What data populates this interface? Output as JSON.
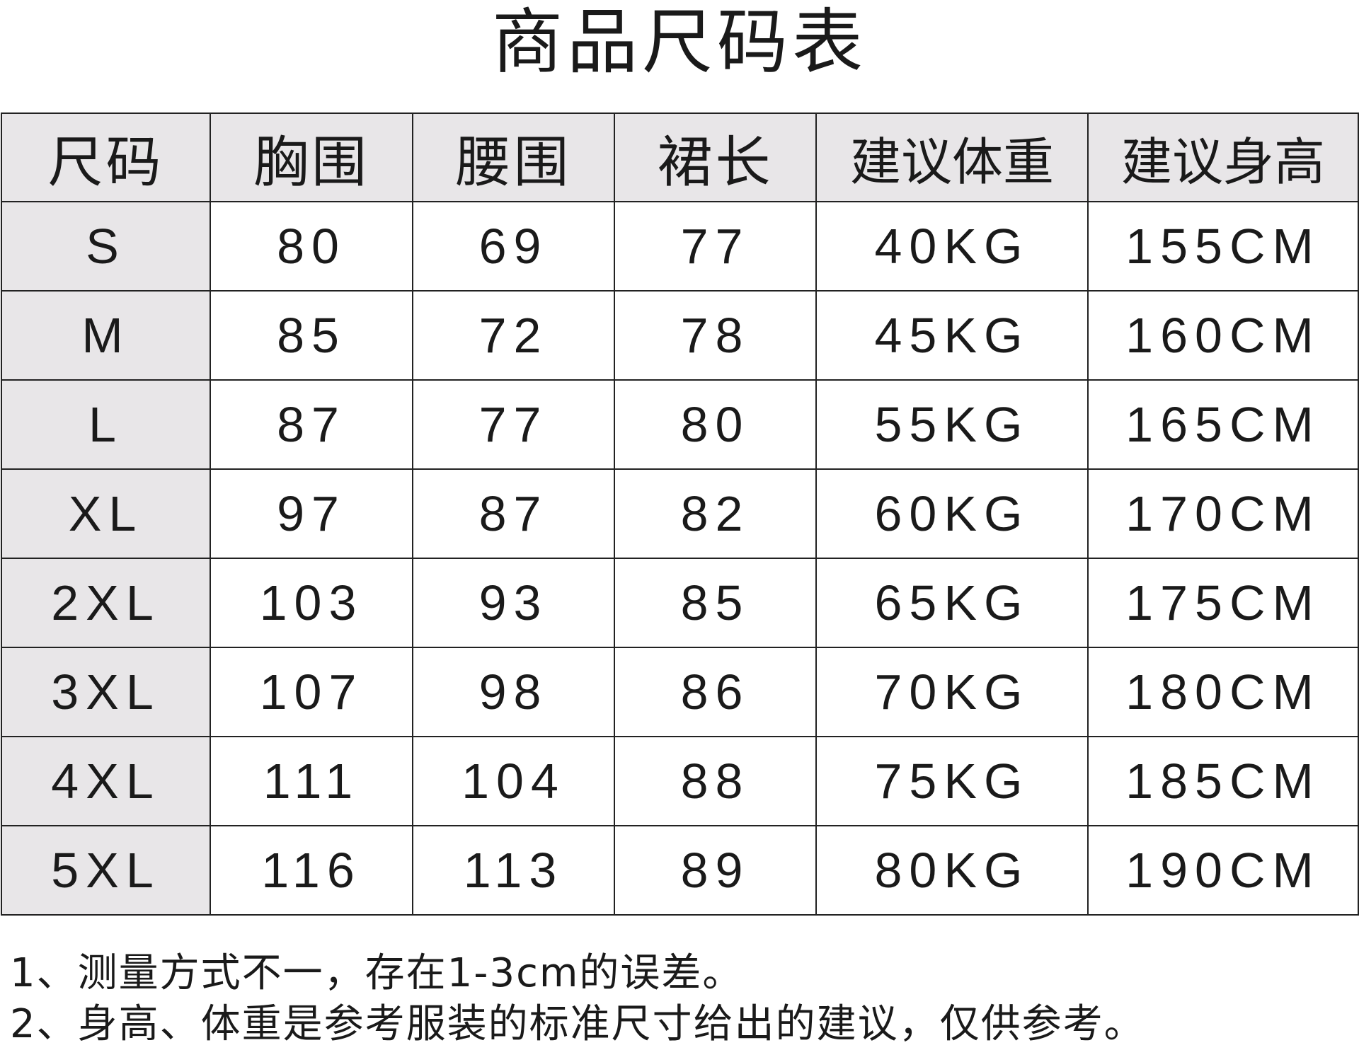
{
  "title": "商品尺码表",
  "table": {
    "headers": [
      "尺码",
      "胸围",
      "腰围",
      "裙长",
      "建议体重",
      "建议身高"
    ],
    "rows": [
      [
        "S",
        "80",
        "69",
        "77",
        "40KG",
        "155CM"
      ],
      [
        "M",
        "85",
        "72",
        "78",
        "45KG",
        "160CM"
      ],
      [
        "L",
        "87",
        "77",
        "80",
        "55KG",
        "165CM"
      ],
      [
        "XL",
        "97",
        "87",
        "82",
        "60KG",
        "170CM"
      ],
      [
        "2XL",
        "103",
        "93",
        "85",
        "65KG",
        "175CM"
      ],
      [
        "3XL",
        "107",
        "98",
        "86",
        "70KG",
        "180CM"
      ],
      [
        "4XL",
        "111",
        "104",
        "88",
        "75KG",
        "185CM"
      ],
      [
        "5XL",
        "116",
        "113",
        "89",
        "80KG",
        "190CM"
      ]
    ]
  },
  "notes": [
    "1、测量方式不一，存在1-3cm的误差。",
    "2、身高、体重是参考服装的标准尺寸给出的建议，仅供参考。"
  ],
  "colors": {
    "header_bg": "#e8e6e8",
    "border": "#222222",
    "text": "#1a1a1a"
  }
}
